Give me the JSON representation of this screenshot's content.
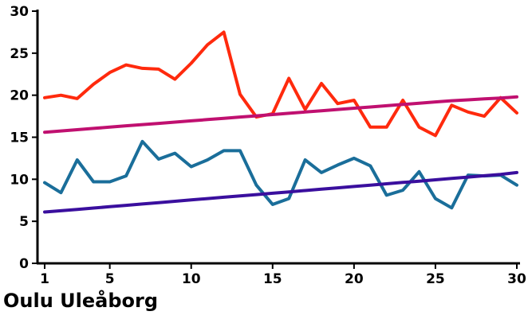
{
  "chart_data": {
    "type": "line",
    "title": "Oulu Uleåborg",
    "xlabel": "",
    "ylabel": "",
    "xlim": [
      1,
      30
    ],
    "ylim": [
      0,
      30
    ],
    "x_ticks": [
      1,
      5,
      10,
      15,
      20,
      25,
      30
    ],
    "y_ticks": [
      0,
      5,
      10,
      15,
      20,
      25,
      30
    ],
    "grid": false,
    "legend": "none",
    "x": [
      1,
      2,
      3,
      4,
      5,
      6,
      7,
      8,
      9,
      10,
      11,
      12,
      13,
      14,
      15,
      16,
      17,
      18,
      19,
      20,
      21,
      22,
      23,
      24,
      25,
      26,
      27,
      28,
      29,
      30
    ],
    "series": [
      {
        "color": "#ff2a0d",
        "values": [
          19.7,
          20.0,
          19.6,
          21.3,
          22.7,
          23.6,
          23.2,
          23.1,
          21.9,
          23.8,
          26.0,
          27.5,
          20.1,
          17.4,
          17.8,
          22.0,
          18.3,
          21.4,
          19.0,
          19.4,
          16.2,
          16.2,
          19.4,
          16.2,
          15.2,
          18.8,
          18.0,
          17.5,
          19.7,
          17.9
        ]
      },
      {
        "color": "#c01070",
        "values": [
          15.6,
          15.75,
          15.9,
          16.05,
          16.2,
          16.36,
          16.5,
          16.65,
          16.8,
          16.95,
          17.1,
          17.25,
          17.4,
          17.55,
          17.7,
          17.85,
          18.0,
          18.15,
          18.3,
          18.45,
          18.6,
          18.75,
          18.9,
          19.05,
          19.2,
          19.34,
          19.45,
          19.56,
          19.67,
          19.8
        ]
      },
      {
        "color": "#1a6e9a",
        "values": [
          9.6,
          8.4,
          12.3,
          9.7,
          9.7,
          10.4,
          14.5,
          12.4,
          13.1,
          11.5,
          12.3,
          13.4,
          13.4,
          9.3,
          7.0,
          7.7,
          12.3,
          10.8,
          11.7,
          12.5,
          11.6,
          8.1,
          8.7,
          10.9,
          7.7,
          6.6,
          10.5,
          10.4,
          10.5,
          9.3
        ]
      },
      {
        "color": "#3a0f9e",
        "values": [
          6.1,
          6.26,
          6.42,
          6.58,
          6.74,
          6.9,
          7.06,
          7.22,
          7.38,
          7.54,
          7.7,
          7.86,
          8.02,
          8.18,
          8.34,
          8.5,
          8.66,
          8.82,
          8.98,
          9.14,
          9.3,
          9.46,
          9.62,
          9.78,
          9.94,
          10.1,
          10.26,
          10.42,
          10.58,
          10.8
        ]
      }
    ]
  }
}
